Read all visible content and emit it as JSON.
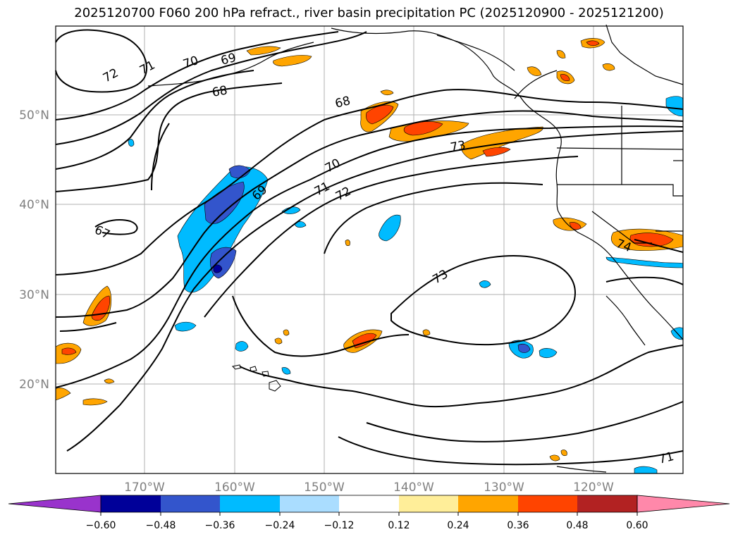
{
  "title": "2025120700 F060 200 hPa refract., river basin precipitation PC (2025120900 - 2025121200)",
  "map": {
    "lat_labels": [
      "50°N",
      "40°N",
      "30°N",
      "20°N"
    ],
    "lon_labels": [
      "170°W",
      "160°W",
      "150°W",
      "140°W",
      "130°W",
      "120°W"
    ],
    "contour_labels": [
      "72",
      "71",
      "70",
      "69",
      "68",
      "68",
      "70",
      "71",
      "72",
      "69",
      "73",
      "67",
      "73",
      "74",
      "71"
    ]
  },
  "colorbar": {
    "ticks": [
      "−0.60",
      "−0.48",
      "−0.36",
      "−0.24",
      "−0.12",
      "0.12",
      "0.24",
      "0.36",
      "0.48",
      "0.60"
    ],
    "colors": [
      "#9933cc",
      "#000099",
      "#3355cc",
      "#00bbff",
      "#aaddff",
      "#ffffff",
      "#ffee99",
      "#ffa500",
      "#ff4400",
      "#b22222",
      "#ff88aa"
    ]
  },
  "colors": {
    "contour": "#000000",
    "coast": "#000000",
    "grid": "#b0b0b0",
    "neg_light": "#00bbff",
    "neg_mid": "#3355cc",
    "neg_dark": "#000099",
    "pos_light": "#ffa500",
    "pos_mid": "#ff4400"
  }
}
